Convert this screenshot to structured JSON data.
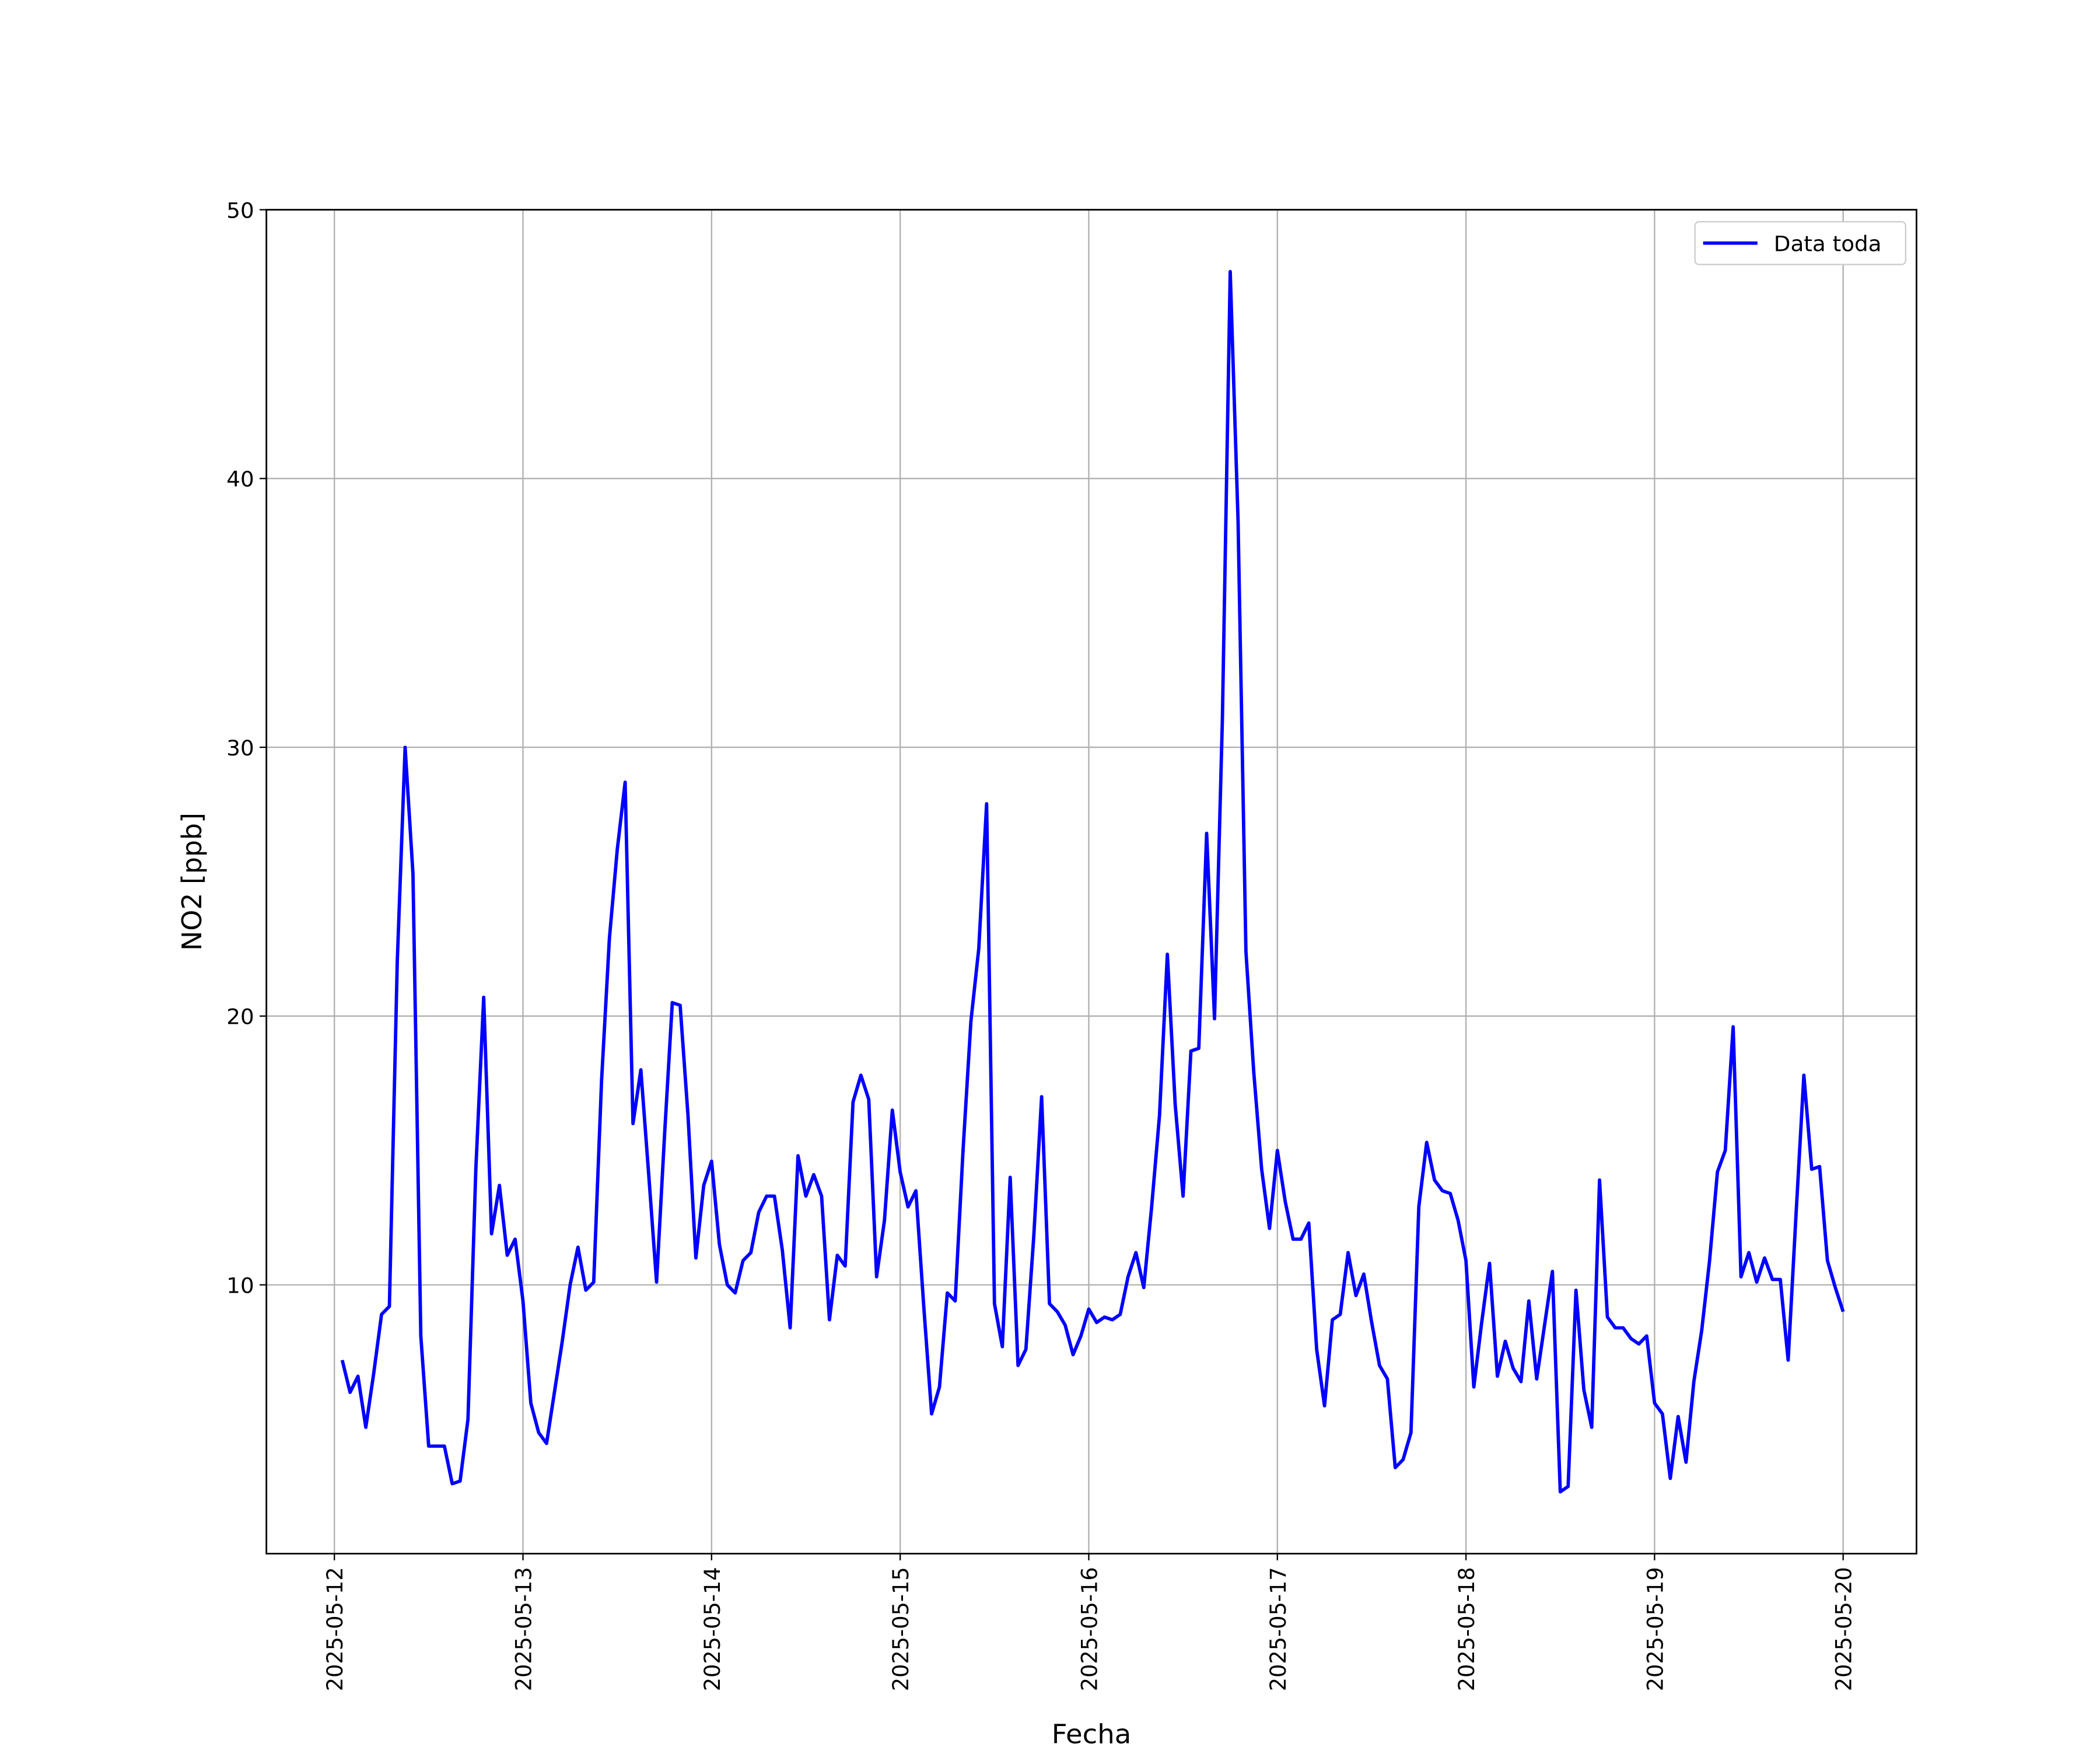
{
  "chart_data": {
    "type": "line",
    "xlabel": "Fecha",
    "ylabel": "NO2 [ppb]",
    "xlim": [
      "2025-05-11 15:21",
      "2025-05-20 09:20"
    ],
    "xticks": [
      "2025-05-12",
      "2025-05-13",
      "2025-05-14",
      "2025-05-15",
      "2025-05-16",
      "2025-05-17",
      "2025-05-18",
      "2025-05-19",
      "2025-05-20"
    ],
    "ylim": [
      0,
      50
    ],
    "yticks": [
      10,
      20,
      30,
      40,
      50
    ],
    "grid": true,
    "legend": "upper right",
    "x": [
      "2025-05-12 01:00",
      "2025-05-12 02:00",
      "2025-05-12 03:00",
      "2025-05-12 04:00",
      "2025-05-12 05:00",
      "2025-05-12 06:00",
      "2025-05-12 07:00",
      "2025-05-12 08:00",
      "2025-05-12 09:00",
      "2025-05-12 10:00",
      "2025-05-12 11:00",
      "2025-05-12 12:00",
      "2025-05-12 13:00",
      "2025-05-12 14:00",
      "2025-05-12 15:00",
      "2025-05-12 16:00",
      "2025-05-12 17:00",
      "2025-05-12 18:00",
      "2025-05-12 19:00",
      "2025-05-12 20:00",
      "2025-05-12 21:00",
      "2025-05-12 22:00",
      "2025-05-12 23:00",
      "2025-05-13 00:00",
      "2025-05-13 01:00",
      "2025-05-13 02:00",
      "2025-05-13 03:00",
      "2025-05-13 04:00",
      "2025-05-13 05:00",
      "2025-05-13 06:00",
      "2025-05-13 07:00",
      "2025-05-13 08:00",
      "2025-05-13 09:00",
      "2025-05-13 10:00",
      "2025-05-13 11:00",
      "2025-05-13 12:00",
      "2025-05-13 13:00",
      "2025-05-13 14:00",
      "2025-05-13 15:00",
      "2025-05-13 16:00",
      "2025-05-13 17:00",
      "2025-05-13 18:00",
      "2025-05-13 19:00",
      "2025-05-13 20:00",
      "2025-05-13 21:00",
      "2025-05-13 22:00",
      "2025-05-13 23:00",
      "2025-05-14 00:00",
      "2025-05-14 01:00",
      "2025-05-14 02:00",
      "2025-05-14 03:00",
      "2025-05-14 04:00",
      "2025-05-14 05:00",
      "2025-05-14 06:00",
      "2025-05-14 07:00",
      "2025-05-14 08:00",
      "2025-05-14 09:00",
      "2025-05-14 10:00",
      "2025-05-14 11:00",
      "2025-05-14 12:00",
      "2025-05-14 13:00",
      "2025-05-14 14:00",
      "2025-05-14 15:00",
      "2025-05-14 16:00",
      "2025-05-14 17:00",
      "2025-05-14 18:00",
      "2025-05-14 19:00",
      "2025-05-14 20:00",
      "2025-05-14 21:00",
      "2025-05-14 22:00",
      "2025-05-14 23:00",
      "2025-05-15 00:00",
      "2025-05-15 01:00",
      "2025-05-15 02:00",
      "2025-05-15 03:00",
      "2025-05-15 04:00",
      "2025-05-15 05:00",
      "2025-05-15 06:00",
      "2025-05-15 07:00",
      "2025-05-15 08:00",
      "2025-05-15 09:00",
      "2025-05-15 10:00",
      "2025-05-15 11:00",
      "2025-05-15 12:00",
      "2025-05-15 13:00",
      "2025-05-15 14:00",
      "2025-05-15 15:00",
      "2025-05-15 16:00",
      "2025-05-15 17:00",
      "2025-05-15 18:00",
      "2025-05-15 19:00",
      "2025-05-15 20:00",
      "2025-05-15 21:00",
      "2025-05-15 22:00",
      "2025-05-15 23:00",
      "2025-05-16 00:00",
      "2025-05-16 01:00",
      "2025-05-16 02:00",
      "2025-05-16 03:00",
      "2025-05-16 04:00",
      "2025-05-16 05:00",
      "2025-05-16 06:00",
      "2025-05-16 07:00",
      "2025-05-16 08:00",
      "2025-05-16 09:00",
      "2025-05-16 10:00",
      "2025-05-16 11:00",
      "2025-05-16 12:00",
      "2025-05-16 13:00",
      "2025-05-16 14:00",
      "2025-05-16 15:00",
      "2025-05-16 16:00",
      "2025-05-16 17:00",
      "2025-05-16 18:00",
      "2025-05-16 19:00",
      "2025-05-16 20:00",
      "2025-05-16 21:00",
      "2025-05-16 22:00",
      "2025-05-16 23:00",
      "2025-05-17 00:00",
      "2025-05-17 01:00",
      "2025-05-17 02:00",
      "2025-05-17 03:00",
      "2025-05-17 04:00",
      "2025-05-17 05:00",
      "2025-05-17 06:00",
      "2025-05-17 07:00",
      "2025-05-17 08:00",
      "2025-05-17 09:00",
      "2025-05-17 10:00",
      "2025-05-17 11:00",
      "2025-05-17 12:00",
      "2025-05-17 13:00",
      "2025-05-17 14:00",
      "2025-05-17 15:00",
      "2025-05-17 16:00",
      "2025-05-17 17:00",
      "2025-05-17 18:00",
      "2025-05-17 19:00",
      "2025-05-17 20:00",
      "2025-05-17 21:00",
      "2025-05-17 22:00",
      "2025-05-17 23:00",
      "2025-05-18 00:00",
      "2025-05-18 01:00",
      "2025-05-18 02:00",
      "2025-05-18 03:00",
      "2025-05-18 04:00",
      "2025-05-18 05:00",
      "2025-05-18 06:00",
      "2025-05-18 07:00",
      "2025-05-18 08:00",
      "2025-05-18 09:00",
      "2025-05-18 10:00",
      "2025-05-18 11:00",
      "2025-05-18 12:00",
      "2025-05-18 13:00",
      "2025-05-18 14:00",
      "2025-05-18 15:00",
      "2025-05-18 16:00",
      "2025-05-18 17:00",
      "2025-05-18 18:00",
      "2025-05-18 19:00",
      "2025-05-18 20:00",
      "2025-05-18 21:00",
      "2025-05-18 22:00",
      "2025-05-18 23:00",
      "2025-05-19 00:00",
      "2025-05-19 01:00",
      "2025-05-19 02:00",
      "2025-05-19 03:00",
      "2025-05-19 04:00",
      "2025-05-19 05:00",
      "2025-05-19 06:00",
      "2025-05-19 07:00",
      "2025-05-19 08:00",
      "2025-05-19 09:00",
      "2025-05-19 10:00",
      "2025-05-19 11:00",
      "2025-05-19 12:00",
      "2025-05-19 13:00",
      "2025-05-19 14:00",
      "2025-05-19 15:00",
      "2025-05-19 16:00",
      "2025-05-19 17:00",
      "2025-05-19 18:00",
      "2025-05-19 19:00",
      "2025-05-19 20:00",
      "2025-05-19 21:00",
      "2025-05-19 22:00",
      "2025-05-19 23:00",
      "2025-05-20 00:00"
    ],
    "series": [
      {
        "name": "Data toda",
        "color": "#0000ff",
        "values": [
          7.2,
          6.0,
          6.6,
          4.7,
          6.7,
          8.9,
          9.2,
          22.0,
          30.0,
          25.3,
          8.1,
          4.0,
          4.0,
          4.0,
          2.6,
          2.7,
          5.0,
          14.3,
          20.7,
          11.9,
          13.7,
          11.1,
          11.7,
          9.4,
          5.6,
          4.5,
          4.1,
          6.0,
          7.9,
          10.0,
          11.4,
          9.8,
          10.1,
          17.6,
          22.9,
          26.2,
          28.7,
          16.0,
          18.0,
          14.1,
          10.1,
          15.5,
          20.5,
          20.4,
          16.3,
          11.0,
          13.7,
          14.6,
          11.5,
          10.0,
          9.7,
          10.9,
          11.2,
          12.7,
          13.3,
          13.3,
          11.3,
          8.4,
          14.8,
          13.3,
          14.1,
          13.3,
          8.7,
          11.1,
          10.7,
          16.8,
          17.8,
          16.9,
          10.3,
          12.4,
          16.5,
          14.2,
          12.9,
          13.5,
          9.2,
          5.2,
          6.2,
          9.7,
          9.4,
          15.0,
          19.8,
          22.5,
          27.9,
          9.3,
          7.7,
          14.0,
          7.0,
          7.6,
          11.8,
          17.0,
          9.3,
          9.0,
          8.5,
          7.4,
          8.1,
          9.1,
          8.6,
          8.8,
          8.7,
          8.9,
          10.3,
          11.2,
          9.9,
          12.9,
          16.3,
          22.3,
          16.7,
          13.3,
          18.7,
          18.8,
          26.8,
          19.9,
          31.0,
          47.7,
          38.4,
          22.4,
          17.9,
          14.3,
          12.1,
          15.0,
          13.1,
          11.7,
          11.7,
          12.3,
          7.6,
          5.5,
          8.7,
          8.9,
          11.2,
          9.6,
          10.4,
          8.6,
          7.0,
          6.5,
          3.2,
          3.5,
          4.5,
          12.9,
          15.3,
          13.9,
          13.5,
          13.4,
          12.4,
          10.9,
          6.2,
          8.6,
          10.8,
          6.6,
          7.9,
          6.9,
          6.4,
          9.4,
          6.5,
          8.5,
          10.5,
          2.3,
          2.5,
          9.8,
          6.1,
          4.7,
          13.9,
          8.8,
          8.4,
          8.4,
          8.0,
          7.8,
          8.1,
          5.6,
          5.2,
          2.8,
          5.1,
          3.4,
          6.4,
          8.3,
          10.9,
          14.2,
          15.0,
          19.6,
          10.3,
          11.2,
          10.1,
          11.0,
          10.2,
          10.2,
          7.2,
          12.6,
          17.8,
          14.3,
          14.4,
          10.9,
          9.9,
          9.0
        ]
      }
    ]
  }
}
